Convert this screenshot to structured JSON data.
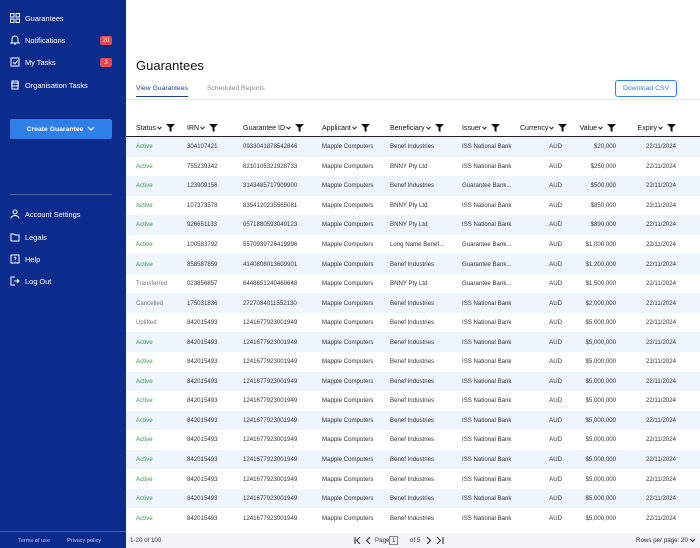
{
  "sidebar": {
    "nav": [
      {
        "label": "Guarantees"
      },
      {
        "label": "Notifications",
        "badge": 20
      },
      {
        "label": "My Tasks",
        "badge": 3
      },
      {
        "label": "Organisation Tasks"
      }
    ],
    "button": "Create Guarantee",
    "account": [
      "Account Settings",
      "Legals",
      "Help",
      "Log Out"
    ],
    "footer": [
      "Terms of use",
      "Privacy policy"
    ]
  },
  "header": {
    "title": "Guarantees",
    "tabs": [
      "View Guarantees",
      "Scheduled Reports"
    ],
    "button": "Download CSV"
  },
  "table": {
    "columns": [
      "Status",
      "IRN",
      "Guarantee ID",
      "Applicant",
      "Beneficiary",
      "Issuer",
      "Currency",
      "Value",
      "Expiry"
    ],
    "rows": [
      [
        "Active",
        "304107421",
        "0933041878542846",
        "Mapple Computers",
        "Benef Industries",
        "ISS National Bank",
        "AUD",
        "$20,000",
        "22/11/2024"
      ],
      [
        "Active",
        "755239342",
        "8210105321928733",
        "Mapple Computers",
        "BNNY Pty Ltd",
        "ISS National Bank",
        "AUD",
        "$250,000",
        "22/11/2024"
      ],
      [
        "Active",
        "123909156",
        "3143485717909900",
        "Mapple Computers",
        "Benef Industries",
        "Guarantee Bank...",
        "AUD",
        "$500,000",
        "22/11/2024"
      ],
      [
        "Active",
        "107373578",
        "8354120235565081",
        "Mapple Computers",
        "BNNY Pty Ltd",
        "ISS National Bank",
        "AUD",
        "$850,000",
        "22/11/2024"
      ],
      [
        "Active",
        "926651133",
        "0571880593049123",
        "Mapple Computers",
        "BNNY Pty Ltd",
        "ISS National Bank",
        "AUD",
        "$890,000",
        "22/11/2024"
      ],
      [
        "Active",
        "100583792",
        "5570939726419996",
        "Mapple Computers",
        "Long Name Benef...",
        "Guarantee Bank...",
        "AUD",
        "$1,000,000",
        "22/11/2024"
      ],
      [
        "Active",
        "858587859",
        "4140808013609901",
        "Mapple Computers",
        "Benef Industries",
        "Guarantee Bank...",
        "AUD",
        "$1,200,000",
        "22/11/2024"
      ],
      [
        "Transferred",
        "023856857",
        "6448651240460648",
        "Mapple Computers",
        "BNNY Pty Ltd",
        "Guarantee Bank...",
        "AUD",
        "$1,500,000",
        "22/11/2024"
      ],
      [
        "Cancelled",
        "175031836",
        "2727084011552130",
        "Mapple Computers",
        "Benef Industries",
        "ISS National Bank",
        "AUD",
        "$2,000,000",
        "22/11/2024"
      ],
      [
        "Uplifted",
        "842015493",
        "1241677923001949",
        "Mapple Computers",
        "Benef Industries",
        "ISS National Bank",
        "AUD",
        "$5,000,000",
        "22/11/2024"
      ],
      [
        "Active",
        "842015493",
        "1241677923001949",
        "Mapple Computers",
        "Benef Industries",
        "ISS National Bank",
        "AUD",
        "$5,000,000",
        "22/11/2024"
      ],
      [
        "Active",
        "842015493",
        "1241677923001949",
        "Mapple Computers",
        "Benef Industries",
        "ISS National Bank",
        "AUD",
        "$5,000,000",
        "22/11/2024"
      ],
      [
        "Active",
        "842015493",
        "1241677923001949",
        "Mapple Computers",
        "Benef Industries",
        "ISS National Bank",
        "AUD",
        "$5,000,000",
        "22/11/2024"
      ],
      [
        "Active",
        "842015493",
        "1241677923001949",
        "Mapple Computers",
        "Benef Industries",
        "ISS National Bank",
        "AUD",
        "$5,000,000",
        "22/11/2024"
      ],
      [
        "Active",
        "842015493",
        "1241677923001949",
        "Mapple Computers",
        "Benef Industries",
        "ISS National Bank",
        "AUD",
        "$5,000,000",
        "22/11/2024"
      ],
      [
        "Active",
        "842015493",
        "1241677923001949",
        "Mapple Computers",
        "Benef Industries",
        "ISS National Bank",
        "AUD",
        "$5,000,000",
        "22/11/2024"
      ],
      [
        "Active",
        "842015493",
        "1241677923001949",
        "Mapple Computers",
        "Benef Industries",
        "ISS National Bank",
        "AUD",
        "$5,000,000",
        "22/11/2024"
      ],
      [
        "Active",
        "842015493",
        "1241677923001949",
        "Mapple Computers",
        "Benef Industries",
        "ISS National Bank",
        "AUD",
        "$5,000,000",
        "22/11/2024"
      ],
      [
        "Active",
        "842015493",
        "1241677923001949",
        "Mapple Computers",
        "Benef Industries",
        "ISS National Bank",
        "AUD",
        "$5,000,000",
        "22/11/2024"
      ],
      [
        "Active",
        "842015493",
        "1241677923001949",
        "Mapple Computers",
        "Benef Industries",
        "ISS National Bank",
        "AUD",
        "$5,000,000",
        "22/11/2024"
      ]
    ]
  },
  "pagination": {
    "range": "1-20 of 100",
    "page_label": "Page",
    "page": 1,
    "of": "of 5",
    "rows_per_page": "Rows per page: 20"
  }
}
